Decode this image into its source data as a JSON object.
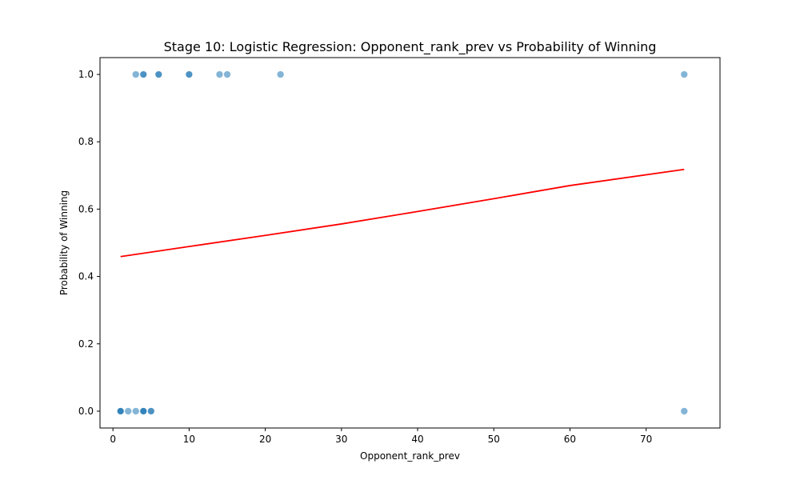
{
  "chart_data": {
    "type": "scatter",
    "title": "Stage 10: Logistic Regression: Opponent_rank_prev vs Probability of Winning",
    "xlabel": "Opponent_rank_prev",
    "ylabel": "Probability of Winning",
    "xlim": [
      -1.7,
      79.7
    ],
    "ylim": [
      -0.05,
      1.05
    ],
    "xticks": [
      0,
      10,
      20,
      30,
      40,
      50,
      60,
      70
    ],
    "yticks": [
      0.0,
      0.2,
      0.4,
      0.6,
      0.8,
      1.0
    ],
    "xtick_labels": [
      "0",
      "10",
      "20",
      "30",
      "40",
      "50",
      "60",
      "70"
    ],
    "ytick_labels": [
      "0.0",
      "0.2",
      "0.4",
      "0.6",
      "0.8",
      "1.0"
    ],
    "grid": false,
    "series": [
      {
        "kind": "scatter",
        "color": "#1f77b4",
        "points": [
          {
            "x": 3,
            "y": 1
          },
          {
            "x": 4,
            "y": 1
          },
          {
            "x": 4,
            "y": 1
          },
          {
            "x": 6,
            "y": 1
          },
          {
            "x": 6,
            "y": 1
          },
          {
            "x": 10,
            "y": 1
          },
          {
            "x": 10,
            "y": 1
          },
          {
            "x": 14,
            "y": 1
          },
          {
            "x": 15,
            "y": 1
          },
          {
            "x": 22,
            "y": 1
          },
          {
            "x": 75,
            "y": 1
          },
          {
            "x": 1,
            "y": 0
          },
          {
            "x": 1,
            "y": 0
          },
          {
            "x": 1,
            "y": 0
          },
          {
            "x": 2,
            "y": 0
          },
          {
            "x": 3,
            "y": 0
          },
          {
            "x": 4,
            "y": 0
          },
          {
            "x": 4,
            "y": 0
          },
          {
            "x": 4,
            "y": 0
          },
          {
            "x": 5,
            "y": 0
          },
          {
            "x": 5,
            "y": 0
          },
          {
            "x": 75,
            "y": 0
          }
        ]
      },
      {
        "kind": "line",
        "color": "#ff0000",
        "points": [
          {
            "x": 1,
            "y": 0.459
          },
          {
            "x": 10,
            "y": 0.489
          },
          {
            "x": 20,
            "y": 0.522
          },
          {
            "x": 30,
            "y": 0.556
          },
          {
            "x": 40,
            "y": 0.593
          },
          {
            "x": 50,
            "y": 0.631
          },
          {
            "x": 60,
            "y": 0.67
          },
          {
            "x": 75,
            "y": 0.718
          }
        ]
      }
    ]
  }
}
